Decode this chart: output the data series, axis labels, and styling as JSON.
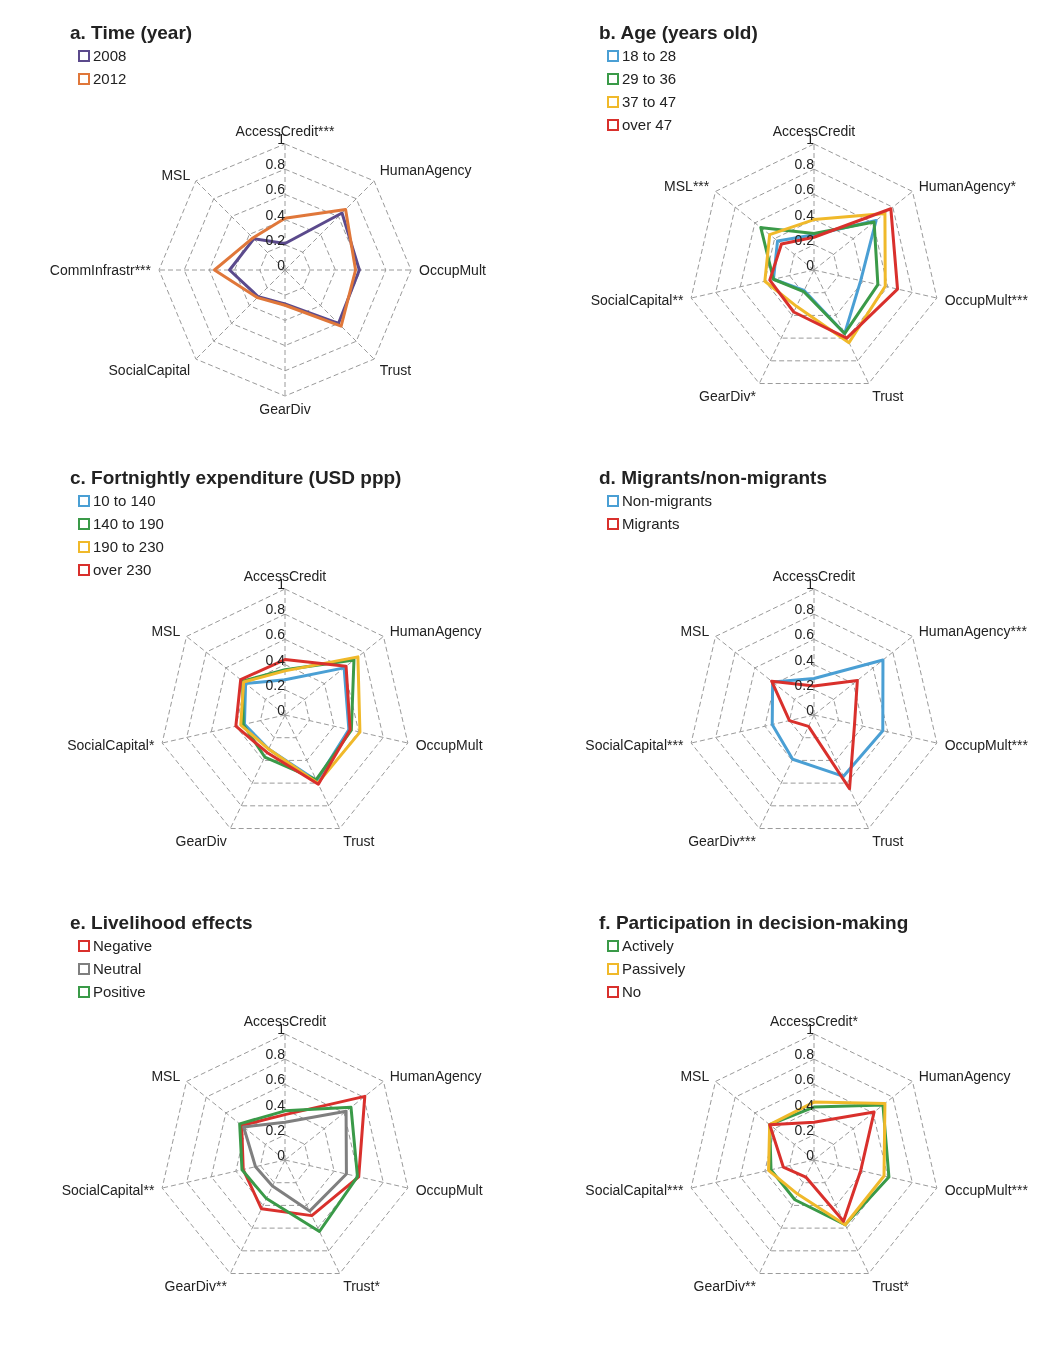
{
  "chart_data": [
    {
      "type": "radar",
      "title": "a. Time (year)",
      "categories": [
        "AccessCredit***",
        "HumanAgency",
        "OccupMult",
        "Trust",
        "GearDiv",
        "SocialCapital",
        "CommInfrastr***",
        "MSL"
      ],
      "ylim": [
        0,
        1
      ],
      "yticks": [
        0,
        0.2,
        0.4,
        0.6,
        0.8,
        1
      ],
      "grid": true,
      "legend": "top left",
      "series": [
        {
          "name": "2008",
          "color": "#5b4a8c",
          "values": [
            0.21,
            0.64,
            0.59,
            0.6,
            0.27,
            0.3,
            0.44,
            0.35
          ]
        },
        {
          "name": "2012",
          "color": "#e0773a",
          "values": [
            0.41,
            0.68,
            0.56,
            0.63,
            0.28,
            0.31,
            0.56,
            0.36
          ]
        }
      ]
    },
    {
      "type": "radar",
      "title": "b. Age (years old)",
      "categories": [
        "AccessCredit",
        "HumanAgency*",
        "OccupMult***",
        "Trust",
        "GearDiv*",
        "SocialCapital**",
        "MSL***"
      ],
      "ylim": [
        0,
        1
      ],
      "yticks": [
        0,
        0.2,
        0.4,
        0.6,
        0.8,
        1
      ],
      "grid": true,
      "legend": "top left",
      "series": [
        {
          "name": "18 to 28",
          "color": "#4a9fd4",
          "values": [
            0.28,
            0.63,
            0.38,
            0.56,
            0.18,
            0.33,
            0.37
          ]
        },
        {
          "name": "29 to 36",
          "color": "#3a9a48",
          "values": [
            0.29,
            0.61,
            0.52,
            0.56,
            0.19,
            0.33,
            0.54
          ]
        },
        {
          "name": "37 to 47",
          "color": "#f0b92a",
          "values": [
            0.4,
            0.72,
            0.58,
            0.64,
            0.32,
            0.4,
            0.45
          ]
        },
        {
          "name": "over 47",
          "color": "#d9302c",
          "values": [
            0.26,
            0.78,
            0.68,
            0.6,
            0.37,
            0.36,
            0.33
          ]
        }
      ]
    },
    {
      "type": "radar",
      "title": "c. Fortnightly expenditure (USD ppp)",
      "categories": [
        "AccessCredit",
        "HumanAgency",
        "OccupMult",
        "Trust",
        "GearDiv",
        "SocialCapital*",
        "MSL"
      ],
      "ylim": [
        0,
        1
      ],
      "yticks": [
        0,
        0.2,
        0.4,
        0.6,
        0.8,
        1
      ],
      "grid": true,
      "legend": "top left",
      "series": [
        {
          "name": "10 to 140",
          "color": "#4a9fd4",
          "values": [
            0.28,
            0.6,
            0.52,
            0.58,
            0.3,
            0.33,
            0.4
          ]
        },
        {
          "name": "140 to 190",
          "color": "#3a9a48",
          "values": [
            0.36,
            0.7,
            0.54,
            0.57,
            0.37,
            0.34,
            0.43
          ]
        },
        {
          "name": "190 to 230",
          "color": "#f0b92a",
          "values": [
            0.35,
            0.74,
            0.61,
            0.6,
            0.3,
            0.36,
            0.42
          ]
        },
        {
          "name": "over 230",
          "color": "#d9302c",
          "values": [
            0.44,
            0.62,
            0.53,
            0.61,
            0.33,
            0.4,
            0.45
          ]
        }
      ]
    },
    {
      "type": "radar",
      "title": "d. Migrants/non-migrants",
      "categories": [
        "AccessCredit",
        "HumanAgency***",
        "OccupMult***",
        "Trust",
        "GearDiv***",
        "SocialCapital***",
        "MSL"
      ],
      "ylim": [
        0,
        1
      ],
      "yticks": [
        0,
        0.2,
        0.4,
        0.6,
        0.8,
        1
      ],
      "grid": true,
      "legend": "top left",
      "series": [
        {
          "name": "Non-migrants",
          "color": "#4a9fd4",
          "values": [
            0.29,
            0.7,
            0.56,
            0.54,
            0.39,
            0.34,
            0.42
          ]
        },
        {
          "name": "Migrants",
          "color": "#d9302c",
          "values": [
            0.23,
            0.44,
            0.33,
            0.65,
            0.1,
            0.2,
            0.43
          ]
        }
      ]
    },
    {
      "type": "radar",
      "title": "e. Livelihood effects",
      "categories": [
        "AccessCredit",
        "HumanAgency",
        "OccupMult",
        "Trust*",
        "GearDiv**",
        "SocialCapital**",
        "MSL"
      ],
      "ylim": [
        0,
        1
      ],
      "yticks": [
        0,
        0.2,
        0.4,
        0.6,
        0.8,
        1
      ],
      "grid": true,
      "legend": "top left",
      "series": [
        {
          "name": "Negative",
          "color": "#d9302c",
          "values": [
            0.36,
            0.81,
            0.6,
            0.49,
            0.43,
            0.34,
            0.44
          ]
        },
        {
          "name": "Neutral",
          "color": "#7f7f7f",
          "values": [
            0.3,
            0.62,
            0.5,
            0.45,
            0.23,
            0.24,
            0.42
          ]
        },
        {
          "name": "Positive",
          "color": "#3a9a48",
          "values": [
            0.39,
            0.67,
            0.59,
            0.63,
            0.34,
            0.35,
            0.46
          ]
        }
      ]
    },
    {
      "type": "radar",
      "title": "f. Participation in decision-making",
      "categories": [
        "AccessCredit*",
        "HumanAgency",
        "OccupMult***",
        "Trust*",
        "GearDiv**",
        "SocialCapital***",
        "MSL"
      ],
      "ylim": [
        0,
        1
      ],
      "yticks": [
        0,
        0.2,
        0.4,
        0.6,
        0.8,
        1
      ],
      "grid": true,
      "legend": "top left",
      "series": [
        {
          "name": "Actively",
          "color": "#3a9a48",
          "values": [
            0.42,
            0.7,
            0.61,
            0.57,
            0.35,
            0.35,
            0.45
          ]
        },
        {
          "name": "Passively",
          "color": "#f0b92a",
          "values": [
            0.46,
            0.72,
            0.57,
            0.57,
            0.3,
            0.37,
            0.45
          ]
        },
        {
          "name": "No",
          "color": "#d9302c",
          "values": [
            0.3,
            0.61,
            0.38,
            0.54,
            0.15,
            0.25,
            0.45
          ]
        }
      ]
    }
  ]
}
